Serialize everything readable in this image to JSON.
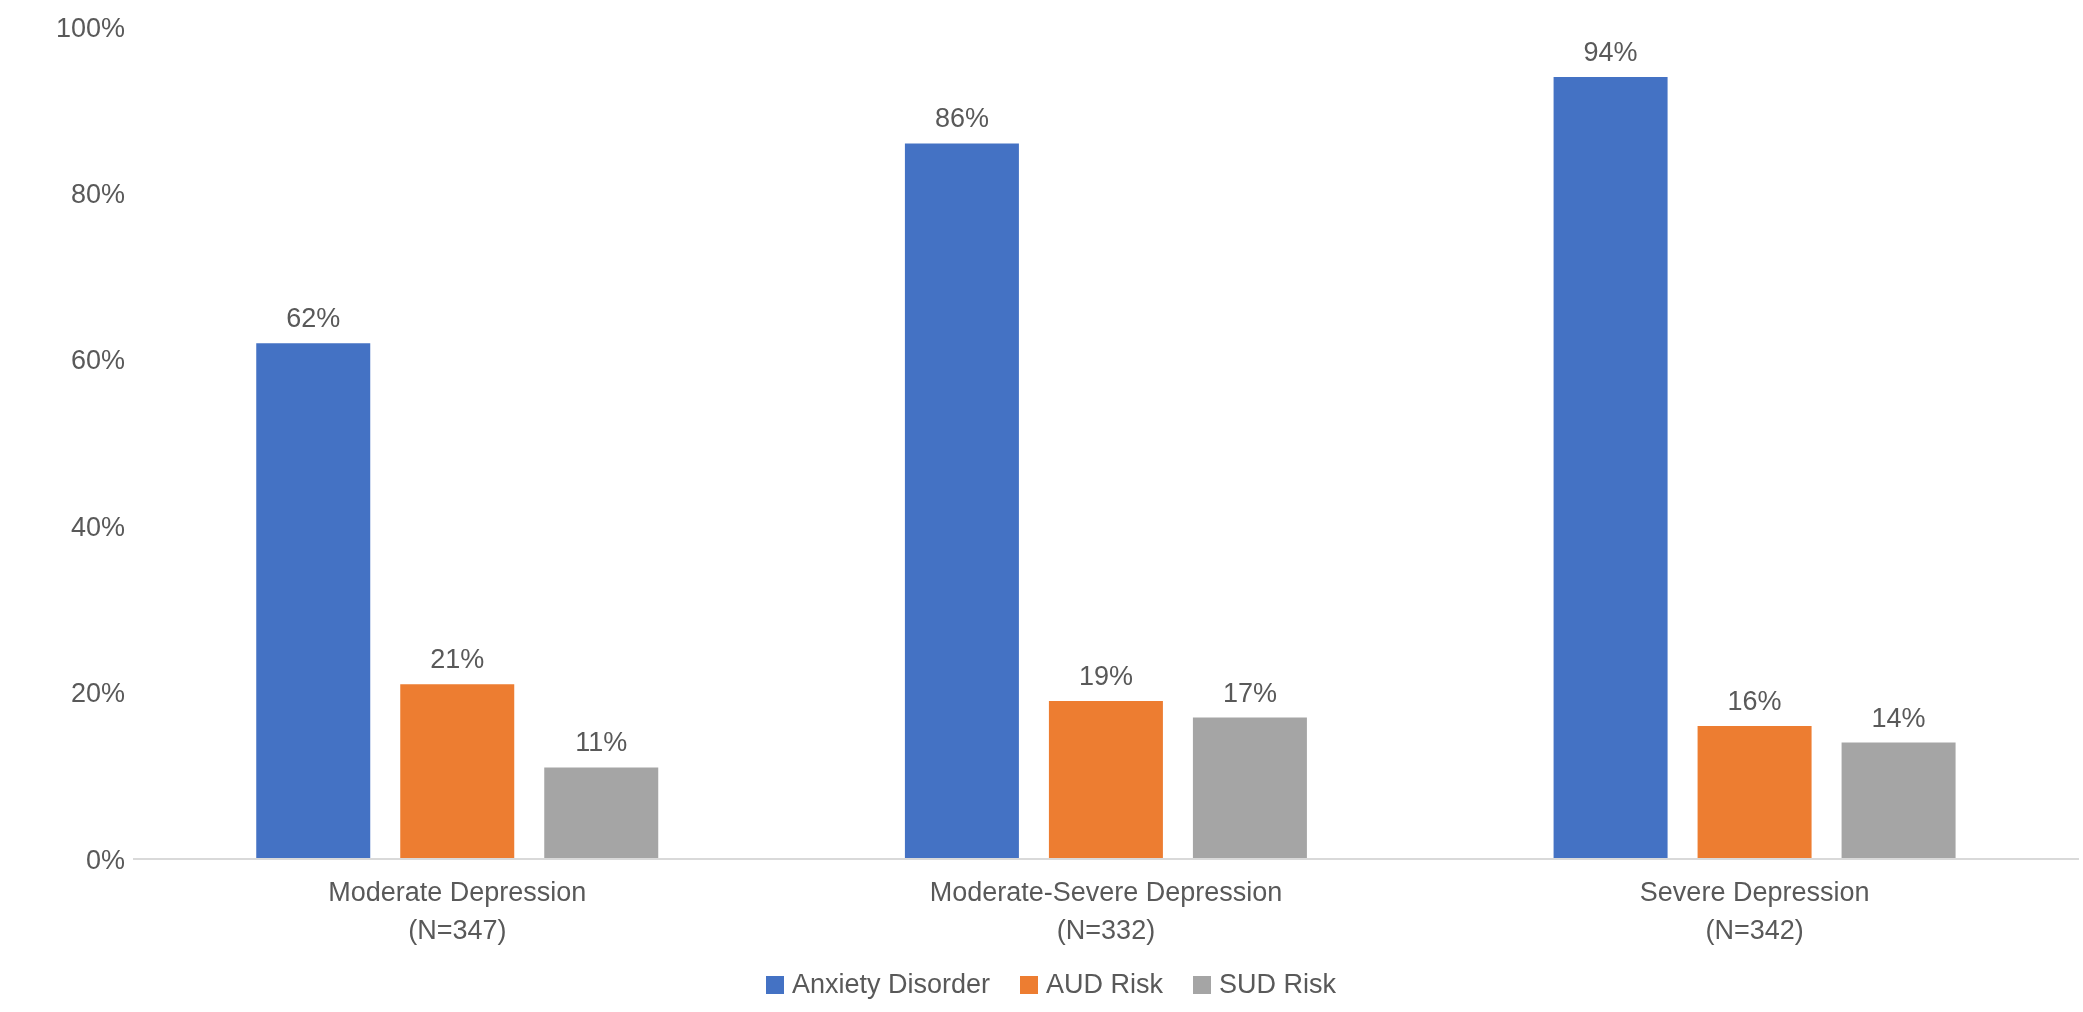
{
  "chart_data": {
    "type": "bar",
    "categories": [
      "Moderate Depression\n(N=347)",
      "Moderate-Severe Depression\n(N=332)",
      "Severe Depression\n(N=342)"
    ],
    "series": [
      {
        "name": "Anxiety Disorder",
        "color": "#4472c4",
        "values": [
          62,
          86,
          94
        ],
        "value_labels": [
          "62%",
          "86%",
          "94%"
        ]
      },
      {
        "name": "AUD Risk",
        "color": "#ed7d31",
        "values": [
          21,
          19,
          16
        ],
        "value_labels": [
          "21%",
          "19%",
          "16%"
        ]
      },
      {
        "name": "SUD Risk",
        "color": "#a5a5a5",
        "values": [
          11,
          17,
          14
        ],
        "value_labels": [
          "11%",
          "17%",
          "14%"
        ]
      }
    ],
    "ylim": [
      0,
      100
    ],
    "yticks": [
      {
        "value": 0,
        "label": "0%"
      },
      {
        "value": 20,
        "label": "20%"
      },
      {
        "value": 40,
        "label": "40%"
      },
      {
        "value": 60,
        "label": "60%"
      },
      {
        "value": 80,
        "label": "80%"
      },
      {
        "value": 100,
        "label": "100%"
      }
    ],
    "grid": false,
    "legend": "bottom"
  }
}
